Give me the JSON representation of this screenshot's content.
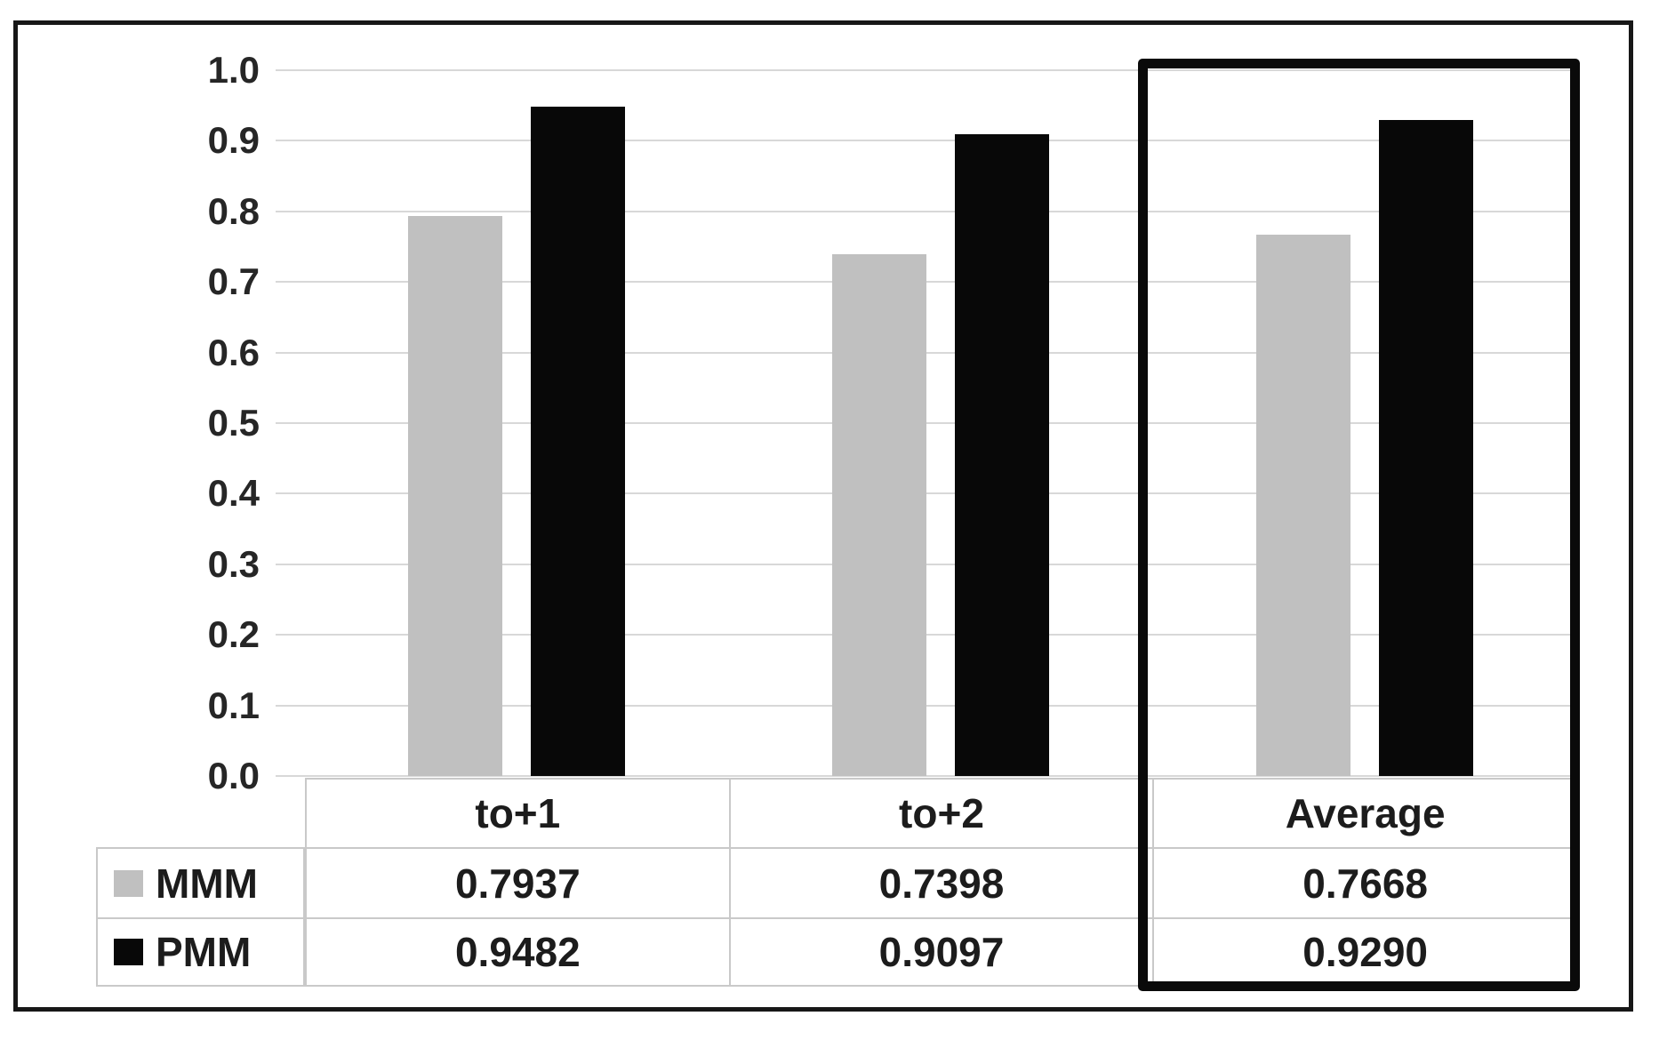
{
  "chart_data": {
    "type": "bar",
    "title": "",
    "categories": [
      "to+1",
      "to+2",
      "Average"
    ],
    "series": [
      {
        "name": "MMM",
        "color": "#c0c0c0",
        "values": [
          0.7937,
          0.7398,
          0.7668
        ]
      },
      {
        "name": "PMM",
        "color": "#080808",
        "values": [
          0.9482,
          0.9097,
          0.929
        ]
      }
    ],
    "ylim": [
      0.0,
      1.0
    ],
    "ytick_step": 0.1,
    "yticks": [
      "1.0",
      "0.9",
      "0.8",
      "0.7",
      "0.6",
      "0.5",
      "0.4",
      "0.3",
      "0.2",
      "0.1",
      "0.0"
    ],
    "grid": true,
    "legend_position": "data-table-left-column",
    "highlighted_category": "Average",
    "data_table": {
      "row_headers": [
        "MMM",
        "PMM"
      ],
      "columns": [
        "to+1",
        "to+2",
        "Average"
      ],
      "cells": [
        [
          "0.7937",
          "0.7398",
          "0.7668"
        ],
        [
          "0.9482",
          "0.9097",
          "0.9290"
        ]
      ]
    }
  },
  "colors": {
    "mmm_series": "#c0c0c0",
    "pmm_series": "#080808",
    "gridline": "#d8d8d8",
    "table_border": "#c9c9c9",
    "figure_border": "#171717",
    "highlight_border": "#0a0a0a",
    "text": "#1c1c1c"
  }
}
